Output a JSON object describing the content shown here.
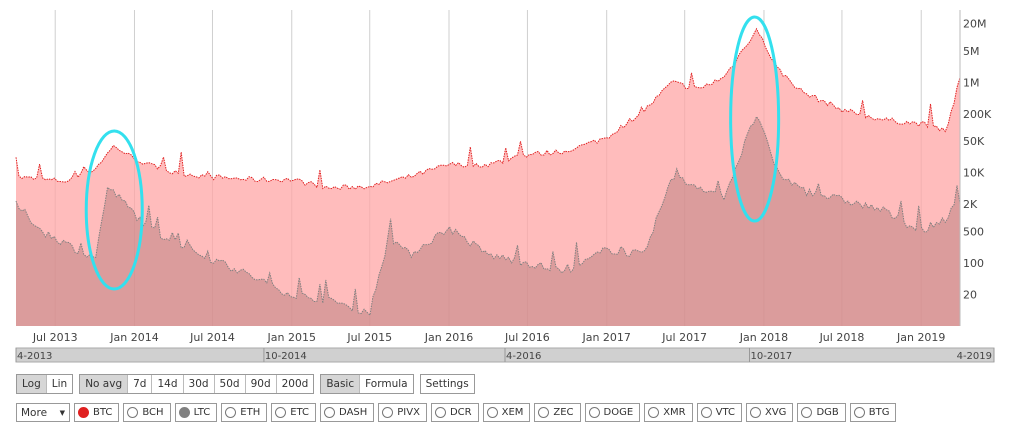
{
  "chart_data": {
    "type": "area",
    "y_scale": "log",
    "y_ticks": [
      "20M",
      "5M",
      "1M",
      "200K",
      "50K",
      "10K",
      "2K",
      "500",
      "100",
      "20"
    ],
    "y_tick_values": [
      20000000,
      5000000,
      1000000,
      200000,
      50000,
      10000,
      2000,
      500,
      100,
      20
    ],
    "x_ticks": [
      "Jul 2013",
      "Jan 2014",
      "Jul 2014",
      "Jan 2015",
      "Jul 2015",
      "Jan 2016",
      "Jul 2016",
      "Jan 2017",
      "Jul 2017",
      "Jan 2018",
      "Jul 2018",
      "Jan 2019"
    ],
    "x_tick_dates": [
      "2013-07-01",
      "2014-01-01",
      "2014-07-01",
      "2015-01-01",
      "2015-07-01",
      "2016-01-01",
      "2016-07-01",
      "2017-01-01",
      "2017-07-01",
      "2018-01-01",
      "2018-07-01",
      "2019-01-01"
    ],
    "series": [
      {
        "name": "BTC",
        "color": "#e02020",
        "points": [
          [
            "2013-04-01",
            8000
          ],
          [
            "2013-06-01",
            7000
          ],
          [
            "2013-08-01",
            6500
          ],
          [
            "2013-10-01",
            12000
          ],
          [
            "2013-11-15",
            40000
          ],
          [
            "2013-12-15",
            25000
          ],
          [
            "2014-02-01",
            15000
          ],
          [
            "2014-04-01",
            10000
          ],
          [
            "2014-07-01",
            8000
          ],
          [
            "2014-10-01",
            7000
          ],
          [
            "2015-01-01",
            7000
          ],
          [
            "2015-04-01",
            4500
          ],
          [
            "2015-07-01",
            5000
          ],
          [
            "2015-10-01",
            8000
          ],
          [
            "2016-01-01",
            15000
          ],
          [
            "2016-04-01",
            15000
          ],
          [
            "2016-07-01",
            25000
          ],
          [
            "2016-10-01",
            30000
          ],
          [
            "2017-01-01",
            60000
          ],
          [
            "2017-04-01",
            250000
          ],
          [
            "2017-06-01",
            1000000
          ],
          [
            "2017-08-01",
            700000
          ],
          [
            "2017-10-01",
            1300000
          ],
          [
            "2017-12-15",
            15000000
          ],
          [
            "2018-02-01",
            2000000
          ],
          [
            "2018-04-01",
            600000
          ],
          [
            "2018-07-01",
            250000
          ],
          [
            "2018-10-01",
            150000
          ],
          [
            "2019-01-01",
            120000
          ],
          [
            "2019-03-01",
            90000
          ],
          [
            "2019-04-01",
            1200000
          ]
        ]
      },
      {
        "name": "LTC",
        "color": "#808080",
        "points": [
          [
            "2013-04-01",
            2000
          ],
          [
            "2013-06-01",
            500
          ],
          [
            "2013-08-01",
            250
          ],
          [
            "2013-10-01",
            120
          ],
          [
            "2013-11-01",
            5000
          ],
          [
            "2013-12-01",
            2500
          ],
          [
            "2014-02-01",
            600
          ],
          [
            "2014-04-01",
            300
          ],
          [
            "2014-07-01",
            120
          ],
          [
            "2014-10-01",
            50
          ],
          [
            "2015-01-01",
            20
          ],
          [
            "2015-04-01",
            15
          ],
          [
            "2015-07-01",
            8
          ],
          [
            "2015-08-15",
            400
          ],
          [
            "2015-10-01",
            150
          ],
          [
            "2016-01-01",
            600
          ],
          [
            "2016-04-01",
            150
          ],
          [
            "2016-07-01",
            100
          ],
          [
            "2016-10-01",
            60
          ],
          [
            "2017-01-01",
            200
          ],
          [
            "2017-04-01",
            150
          ],
          [
            "2017-06-01",
            8000
          ],
          [
            "2017-08-01",
            5000
          ],
          [
            "2017-10-01",
            3000
          ],
          [
            "2017-12-15",
            200000
          ],
          [
            "2018-02-01",
            10000
          ],
          [
            "2018-04-01",
            4000
          ],
          [
            "2018-07-01",
            2500
          ],
          [
            "2018-10-01",
            1500
          ],
          [
            "2019-01-01",
            500
          ],
          [
            "2019-03-01",
            1000
          ],
          [
            "2019-04-01",
            2500
          ]
        ]
      }
    ],
    "navigator_labels": [
      "4-2013",
      "10-2014",
      "4-2016",
      "10-2017",
      "4-2019"
    ],
    "grid": true
  },
  "controls": {
    "scale": [
      "Log",
      "Lin"
    ],
    "avg": [
      "No avg",
      "7d",
      "14d",
      "30d",
      "50d",
      "90d",
      "200d"
    ],
    "mode": [
      "Basic",
      "Formula"
    ],
    "settings": "Settings"
  },
  "coins": {
    "more": "More",
    "more_arrow": "▼",
    "list": [
      {
        "label": "BTC",
        "dot": "#e02020"
      },
      {
        "label": "BCH",
        "dot": ""
      },
      {
        "label": "LTC",
        "dot": "#808080"
      },
      {
        "label": "ETH",
        "dot": ""
      },
      {
        "label": "ETC",
        "dot": ""
      },
      {
        "label": "DASH",
        "dot": ""
      },
      {
        "label": "PIVX",
        "dot": ""
      },
      {
        "label": "DCR",
        "dot": ""
      },
      {
        "label": "XEM",
        "dot": ""
      },
      {
        "label": "ZEC",
        "dot": ""
      },
      {
        "label": "DOGE",
        "dot": ""
      },
      {
        "label": "XMR",
        "dot": ""
      },
      {
        "label": "VTC",
        "dot": ""
      },
      {
        "label": "XVG",
        "dot": ""
      },
      {
        "label": "DGB",
        "dot": ""
      },
      {
        "label": "BTG",
        "dot": ""
      }
    ]
  }
}
